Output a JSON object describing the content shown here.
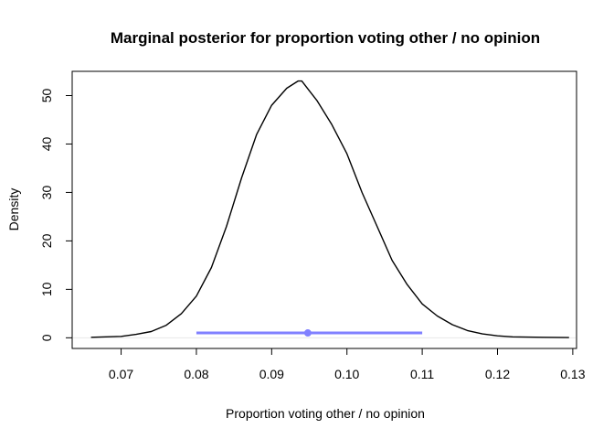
{
  "chart_data": {
    "type": "line",
    "title": "Marginal posterior for proportion voting other / no opinion",
    "xlabel": "Proportion voting other / no opinion",
    "ylabel": "Density",
    "xlim": [
      0.0635,
      0.1305
    ],
    "ylim": [
      -2.2,
      55
    ],
    "x_ticks": [
      0.07,
      0.08,
      0.09,
      0.1,
      0.11,
      0.12,
      0.13
    ],
    "x_tick_labels": [
      "0.07",
      "0.08",
      "0.09",
      "0.10",
      "0.11",
      "0.12",
      "0.13"
    ],
    "y_ticks": [
      0,
      10,
      20,
      30,
      40,
      50
    ],
    "y_tick_labels": [
      "0",
      "10",
      "20",
      "30",
      "40",
      "50"
    ],
    "grid": false,
    "series": [
      {
        "color": "#000000",
        "x": [
          0.066,
          0.068,
          0.07,
          0.072,
          0.074,
          0.076,
          0.078,
          0.08,
          0.082,
          0.084,
          0.086,
          0.088,
          0.09,
          0.092,
          0.0935,
          0.094,
          0.095,
          0.096,
          0.097,
          0.098,
          0.1,
          0.102,
          0.104,
          0.106,
          0.108,
          0.11,
          0.112,
          0.114,
          0.116,
          0.118,
          0.12,
          0.122,
          0.124,
          0.126,
          0.1295
        ],
        "y": [
          0.1,
          0.2,
          0.3,
          0.7,
          1.3,
          2.6,
          5.0,
          8.6,
          14.5,
          23.0,
          33.0,
          42.0,
          48.0,
          51.5,
          53.0,
          53.0,
          51.0,
          49.0,
          46.5,
          44.0,
          38.0,
          30.0,
          23.0,
          16.0,
          11.0,
          7.0,
          4.5,
          2.7,
          1.5,
          0.8,
          0.4,
          0.2,
          0.15,
          0.1,
          0.05
        ]
      }
    ],
    "interval": {
      "color": "#8080ff",
      "lower": 0.08,
      "upper": 0.11,
      "point": 0.0948,
      "y": 1.0
    },
    "baseline": {
      "y": 0,
      "color": "#e8e8e8"
    }
  }
}
